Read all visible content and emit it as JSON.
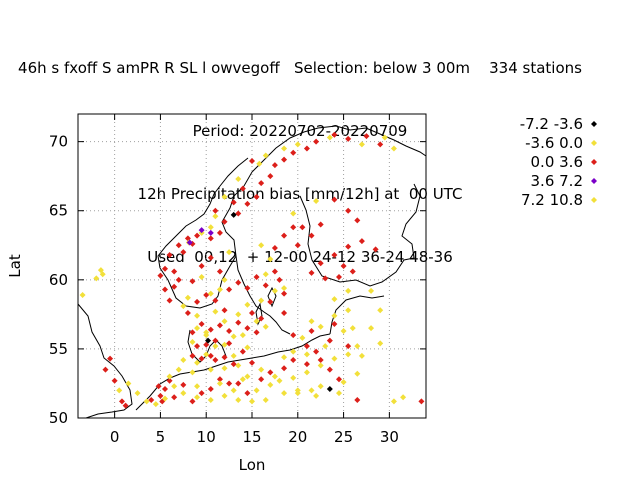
{
  "chart_data": {
    "type": "scatter",
    "title_lines": [
      "46h s fxoff S amPR R SL l owvegoff   Selection: below 3 00m    334 stations",
      "Period: 20220702-20220709",
      "12h Precipitation bias [mm/12h] at  00 UTC",
      "Used  00,12  + 12-00 24-12 36-24 48-36"
    ],
    "xlabel": "Lon",
    "ylabel": "Lat",
    "xlim": [
      -4,
      34
    ],
    "ylim": [
      50,
      72
    ],
    "xticks": [
      "0",
      "5",
      "10",
      "15",
      "20",
      "25",
      "30"
    ],
    "xtick_values": [
      0,
      5,
      10,
      15,
      20,
      25,
      30
    ],
    "yticks": [
      "50",
      "55",
      "60",
      "65",
      "70"
    ],
    "ytick_values": [
      50,
      55,
      60,
      65,
      70
    ],
    "grid": true,
    "legend_position": "right",
    "series": [
      {
        "name": "-7.2 -3.6",
        "color": "#000000",
        "points": [
          [
            13.0,
            64.7
          ],
          [
            23.5,
            52.1
          ],
          [
            10.2,
            55.6
          ]
        ]
      },
      {
        "name": "-3.6 0.0",
        "color": "#f2e03a",
        "points": [
          [
            -3.5,
            58.9
          ],
          [
            -2.0,
            60.1
          ],
          [
            -1.5,
            60.7
          ],
          [
            -1.3,
            60.4
          ],
          [
            8.1,
            62.7
          ],
          [
            9.5,
            63.4
          ],
          [
            10.5,
            63.8
          ],
          [
            11.0,
            64.6
          ],
          [
            12.0,
            66.0
          ],
          [
            13.5,
            67.3
          ],
          [
            15.8,
            68.4
          ],
          [
            16.5,
            69.0
          ],
          [
            18.5,
            69.5
          ],
          [
            20.0,
            69.8
          ],
          [
            23.5,
            70.3
          ],
          [
            27.0,
            69.8
          ],
          [
            29.5,
            70.3
          ],
          [
            30.5,
            69.5
          ],
          [
            19.5,
            64.8
          ],
          [
            22.0,
            65.7
          ],
          [
            16.0,
            62.5
          ],
          [
            17.0,
            61.5
          ],
          [
            16.5,
            60.4
          ],
          [
            12.5,
            62.0
          ],
          [
            12.0,
            60.0
          ],
          [
            11.5,
            59.3
          ],
          [
            10.5,
            59.0
          ],
          [
            9.5,
            60.2
          ],
          [
            8.0,
            58.7
          ],
          [
            7.5,
            58.1
          ],
          [
            9.0,
            57.4
          ],
          [
            11.0,
            57.7
          ],
          [
            12.0,
            57.0
          ],
          [
            13.5,
            57.5
          ],
          [
            14.5,
            58.2
          ],
          [
            16.0,
            58.5
          ],
          [
            17.5,
            59.2
          ],
          [
            18.5,
            59.4
          ],
          [
            15.5,
            57.0
          ],
          [
            16.5,
            56.6
          ],
          [
            14.0,
            56.0
          ],
          [
            13.0,
            55.9
          ],
          [
            12.0,
            55.3
          ],
          [
            11.0,
            55.2
          ],
          [
            10.0,
            56.0
          ],
          [
            9.0,
            56.5
          ],
          [
            8.5,
            55.5
          ],
          [
            7.5,
            54.2
          ],
          [
            9.0,
            54.0
          ],
          [
            10.5,
            53.5
          ],
          [
            12.0,
            53.6
          ],
          [
            13.5,
            53.8
          ],
          [
            14.5,
            53.0
          ],
          [
            16.0,
            53.5
          ],
          [
            17.5,
            53.0
          ],
          [
            18.5,
            54.4
          ],
          [
            19.5,
            54.8
          ],
          [
            21.0,
            54.6
          ],
          [
            22.5,
            53.8
          ],
          [
            24.0,
            54.3
          ],
          [
            25.5,
            54.6
          ],
          [
            26.5,
            55.2
          ],
          [
            25.0,
            56.3
          ],
          [
            22.5,
            56.6
          ],
          [
            21.5,
            57.0
          ],
          [
            24.0,
            57.4
          ],
          [
            25.5,
            57.8
          ],
          [
            24.0,
            58.6
          ],
          [
            25.5,
            59.2
          ],
          [
            28.0,
            59.2
          ],
          [
            29.0,
            57.8
          ],
          [
            28.0,
            56.5
          ],
          [
            29.0,
            55.4
          ],
          [
            27.0,
            54.5
          ],
          [
            26.5,
            53.2
          ],
          [
            25.0,
            52.6
          ],
          [
            22.5,
            52.3
          ],
          [
            21.5,
            52.0
          ],
          [
            20.0,
            51.8
          ],
          [
            18.5,
            51.8
          ],
          [
            16.5,
            51.3
          ],
          [
            15.0,
            51.2
          ],
          [
            13.5,
            51.3
          ],
          [
            12.0,
            51.6
          ],
          [
            10.5,
            51.3
          ],
          [
            9.0,
            51.5
          ],
          [
            7.5,
            51.8
          ],
          [
            6.5,
            52.3
          ],
          [
            5.5,
            51.4
          ],
          [
            4.5,
            51.0
          ],
          [
            3.5,
            51.2
          ],
          [
            2.5,
            51.8
          ],
          [
            1.5,
            52.5
          ],
          [
            0.5,
            52.0
          ],
          [
            11.5,
            52.5
          ],
          [
            13.0,
            52.0
          ],
          [
            14.0,
            52.8
          ],
          [
            17.0,
            52.4
          ],
          [
            19.5,
            52.9
          ],
          [
            21.0,
            53.3
          ],
          [
            23.0,
            55.2
          ],
          [
            20.5,
            55.8
          ],
          [
            26.0,
            56.5
          ],
          [
            31.5,
            51.5
          ],
          [
            30.5,
            51.2
          ],
          [
            14.5,
            55.1
          ],
          [
            13.0,
            54.5
          ],
          [
            10.0,
            54.6
          ],
          [
            8.5,
            53.3
          ],
          [
            7.0,
            53.5
          ],
          [
            6.0,
            53.0
          ],
          [
            9.0,
            52.3
          ],
          [
            15.5,
            52.0
          ],
          [
            18.0,
            52.7
          ],
          [
            20.0,
            52.0
          ],
          [
            22.0,
            51.6
          ],
          [
            24.5,
            51.8
          ]
        ]
      },
      {
        "name": "0.0 3.6",
        "color": "#dc1f1a",
        "points": [
          [
            -0.5,
            54.3
          ],
          [
            -1.0,
            53.5
          ],
          [
            0.0,
            52.7
          ],
          [
            0.8,
            51.2
          ],
          [
            1.2,
            50.9
          ],
          [
            4.0,
            51.3
          ],
          [
            5.0,
            51.6
          ],
          [
            5.5,
            52.1
          ],
          [
            6.0,
            52.7
          ],
          [
            4.8,
            52.3
          ],
          [
            5.2,
            51.2
          ],
          [
            6.5,
            51.5
          ],
          [
            7.5,
            52.4
          ],
          [
            8.5,
            51.2
          ],
          [
            9.5,
            51.8
          ],
          [
            10.5,
            52.1
          ],
          [
            11.5,
            52.8
          ],
          [
            12.5,
            52.5
          ],
          [
            13.5,
            52.5
          ],
          [
            14.5,
            51.8
          ],
          [
            16.0,
            52.8
          ],
          [
            17.0,
            53.3
          ],
          [
            18.5,
            53.6
          ],
          [
            19.5,
            54.2
          ],
          [
            21.0,
            53.9
          ],
          [
            22.0,
            54.8
          ],
          [
            23.5,
            53.5
          ],
          [
            24.5,
            52.8
          ],
          [
            26.5,
            51.3
          ],
          [
            33.5,
            51.2
          ],
          [
            8.5,
            54.5
          ],
          [
            9.5,
            54.3
          ],
          [
            10.5,
            54.5
          ],
          [
            11.0,
            54.2
          ],
          [
            12.0,
            54.4
          ],
          [
            13.0,
            53.9
          ],
          [
            14.0,
            54.8
          ],
          [
            15.0,
            54.0
          ],
          [
            9.0,
            55.2
          ],
          [
            10.0,
            55.3
          ],
          [
            11.0,
            55.6
          ],
          [
            12.5,
            55.4
          ],
          [
            8.5,
            56.2
          ],
          [
            9.5,
            56.8
          ],
          [
            10.5,
            56.4
          ],
          [
            11.5,
            56.7
          ],
          [
            12.5,
            56.3
          ],
          [
            13.5,
            56.9
          ],
          [
            14.5,
            56.5
          ],
          [
            15.0,
            57.6
          ],
          [
            12.0,
            57.8
          ],
          [
            11.0,
            58.5
          ],
          [
            10.0,
            58.9
          ],
          [
            9.0,
            58.4
          ],
          [
            8.0,
            57.6
          ],
          [
            6.0,
            58.5
          ],
          [
            5.5,
            59.3
          ],
          [
            6.5,
            59.5
          ],
          [
            5.0,
            60.3
          ],
          [
            5.5,
            60.8
          ],
          [
            7.0,
            60.0
          ],
          [
            8.5,
            59.9
          ],
          [
            9.5,
            61.0
          ],
          [
            10.5,
            61.6
          ],
          [
            11.5,
            60.6
          ],
          [
            12.5,
            59.3
          ],
          [
            13.5,
            59.8
          ],
          [
            14.5,
            59.4
          ],
          [
            15.5,
            60.2
          ],
          [
            16.5,
            59.6
          ],
          [
            17.5,
            60.6
          ],
          [
            18.0,
            60.0
          ],
          [
            18.5,
            59.0
          ],
          [
            17.0,
            58.4
          ],
          [
            16.0,
            57.2
          ],
          [
            6.0,
            61.8
          ],
          [
            7.5,
            62.0
          ],
          [
            8.5,
            62.6
          ],
          [
            9.0,
            63.2
          ],
          [
            10.5,
            63.0
          ],
          [
            11.5,
            63.4
          ],
          [
            12.0,
            64.2
          ],
          [
            13.5,
            64.8
          ],
          [
            14.5,
            65.5
          ],
          [
            15.5,
            66.0
          ],
          [
            16.0,
            67.0
          ],
          [
            17.0,
            67.5
          ],
          [
            17.5,
            68.3
          ],
          [
            18.5,
            68.7
          ],
          [
            19.5,
            69.2
          ],
          [
            21.0,
            69.5
          ],
          [
            22.0,
            70.0
          ],
          [
            24.0,
            70.5
          ],
          [
            25.5,
            70.2
          ],
          [
            27.5,
            70.4
          ],
          [
            29.0,
            69.8
          ],
          [
            14.0,
            66.6
          ],
          [
            15.0,
            68.6
          ],
          [
            13.0,
            65.6
          ],
          [
            11.0,
            65.0
          ],
          [
            20.5,
            63.8
          ],
          [
            21.5,
            63.2
          ],
          [
            22.5,
            64.0
          ],
          [
            24.0,
            65.8
          ],
          [
            25.5,
            65.0
          ],
          [
            26.5,
            64.3
          ],
          [
            27.0,
            62.8
          ],
          [
            28.5,
            62.2
          ],
          [
            25.5,
            62.4
          ],
          [
            24.0,
            61.8
          ],
          [
            22.5,
            61.2
          ],
          [
            21.5,
            60.5
          ],
          [
            23.0,
            60.1
          ],
          [
            24.5,
            60.2
          ],
          [
            26.0,
            60.6
          ],
          [
            25.0,
            61.0
          ],
          [
            20.0,
            62.5
          ],
          [
            18.5,
            63.2
          ],
          [
            19.5,
            63.8
          ],
          [
            17.5,
            62.3
          ],
          [
            6.5,
            60.6
          ],
          [
            7.0,
            62.5
          ],
          [
            8.0,
            63.0
          ],
          [
            15.5,
            56.2
          ],
          [
            18.5,
            57.6
          ],
          [
            19.5,
            56.0
          ],
          [
            21.0,
            55.2
          ],
          [
            22.5,
            54.2
          ],
          [
            23.5,
            55.6
          ],
          [
            24.0,
            56.8
          ],
          [
            25.5,
            55.2
          ],
          [
            21.5,
            56.3
          ]
        ]
      },
      {
        "name": "3.6 7.2",
        "color": "#7b00c8",
        "points": [
          [
            9.5,
            63.6
          ],
          [
            8.2,
            62.7
          ],
          [
            10.5,
            63.4
          ]
        ]
      },
      {
        "name": "7.2 10.8",
        "color": "#f2e03a",
        "points": [
          [
            10.0,
            56.2
          ]
        ]
      }
    ]
  }
}
